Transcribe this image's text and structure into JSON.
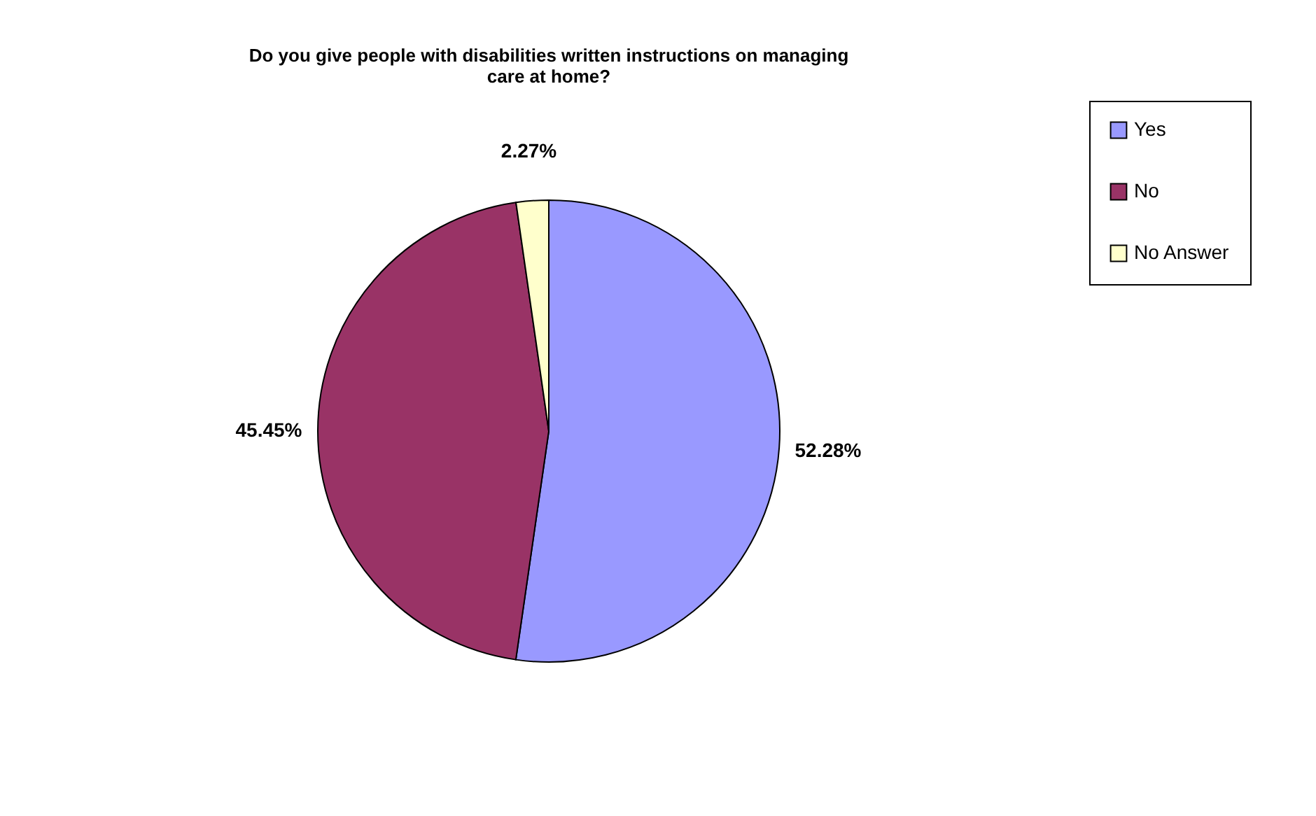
{
  "chart_data": {
    "type": "pie",
    "title": "Do you give people with disabilities written instructions on managing care at home?",
    "categories": [
      "Yes",
      "No",
      "No Answer"
    ],
    "values": [
      52.28,
      45.45,
      2.27
    ],
    "colors": [
      "#9999ff",
      "#993366",
      "#ffffcc"
    ],
    "value_labels": [
      "52.28%",
      "45.45%",
      "2.27%"
    ],
    "legend": "right"
  }
}
